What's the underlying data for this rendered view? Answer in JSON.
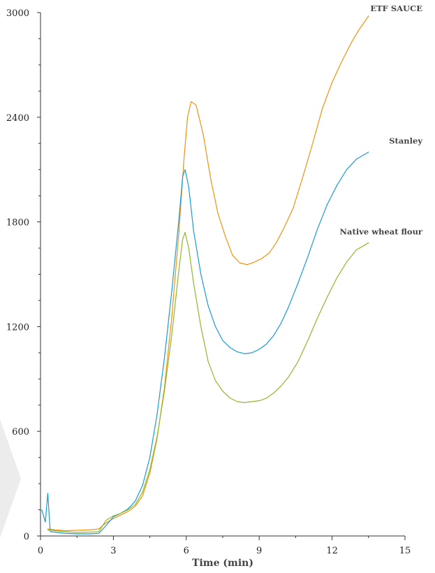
{
  "chart_data": {
    "type": "line",
    "title": "",
    "xlabel": "Time (min)",
    "ylabel": "",
    "xlim": [
      0,
      15
    ],
    "ylim": [
      0,
      3000
    ],
    "xticks": [
      0,
      3,
      6,
      9,
      12,
      15
    ],
    "yticks": [
      0,
      600,
      1200,
      1800,
      2400,
      3000
    ],
    "grid": false,
    "legend": "inline labels at line ends",
    "series": [
      {
        "name": "ETF SAUCE",
        "color": "#f0920e",
        "points": [
          [
            0.3,
            40
          ],
          [
            0.6,
            35
          ],
          [
            1.0,
            30
          ],
          [
            1.5,
            32
          ],
          [
            2.0,
            35
          ],
          [
            2.4,
            40
          ],
          [
            2.7,
            75
          ],
          [
            3.0,
            100
          ],
          [
            3.3,
            120
          ],
          [
            3.6,
            140
          ],
          [
            3.9,
            170
          ],
          [
            4.2,
            230
          ],
          [
            4.5,
            360
          ],
          [
            4.8,
            560
          ],
          [
            5.1,
            850
          ],
          [
            5.4,
            1250
          ],
          [
            5.7,
            1750
          ],
          [
            5.9,
            2150
          ],
          [
            6.05,
            2400
          ],
          [
            6.2,
            2490
          ],
          [
            6.4,
            2470
          ],
          [
            6.7,
            2300
          ],
          [
            7.0,
            2050
          ],
          [
            7.3,
            1850
          ],
          [
            7.6,
            1720
          ],
          [
            7.9,
            1610
          ],
          [
            8.2,
            1565
          ],
          [
            8.5,
            1555
          ],
          [
            8.8,
            1570
          ],
          [
            9.1,
            1590
          ],
          [
            9.4,
            1620
          ],
          [
            9.7,
            1680
          ],
          [
            10.0,
            1760
          ],
          [
            10.4,
            1880
          ],
          [
            10.8,
            2060
          ],
          [
            11.2,
            2250
          ],
          [
            11.6,
            2450
          ],
          [
            12.0,
            2600
          ],
          [
            12.4,
            2720
          ],
          [
            12.8,
            2830
          ],
          [
            13.1,
            2900
          ],
          [
            13.5,
            2980
          ]
        ]
      },
      {
        "name": "Stanley",
        "color": "#1a9cd4",
        "points": [
          [
            0.05,
            150
          ],
          [
            0.2,
            80
          ],
          [
            0.3,
            245
          ],
          [
            0.4,
            25
          ],
          [
            0.7,
            20
          ],
          [
            1.0,
            15
          ],
          [
            1.5,
            12
          ],
          [
            2.0,
            12
          ],
          [
            2.4,
            15
          ],
          [
            2.7,
            60
          ],
          [
            3.0,
            110
          ],
          [
            3.3,
            130
          ],
          [
            3.6,
            155
          ],
          [
            3.9,
            200
          ],
          [
            4.2,
            290
          ],
          [
            4.5,
            450
          ],
          [
            4.8,
            700
          ],
          [
            5.1,
            1020
          ],
          [
            5.4,
            1400
          ],
          [
            5.7,
            1820
          ],
          [
            5.85,
            2060
          ],
          [
            5.95,
            2100
          ],
          [
            6.1,
            2000
          ],
          [
            6.3,
            1750
          ],
          [
            6.6,
            1500
          ],
          [
            6.9,
            1320
          ],
          [
            7.2,
            1200
          ],
          [
            7.5,
            1120
          ],
          [
            7.8,
            1080
          ],
          [
            8.1,
            1055
          ],
          [
            8.4,
            1045
          ],
          [
            8.7,
            1050
          ],
          [
            9.0,
            1070
          ],
          [
            9.3,
            1100
          ],
          [
            9.6,
            1150
          ],
          [
            9.9,
            1220
          ],
          [
            10.2,
            1310
          ],
          [
            10.6,
            1450
          ],
          [
            11.0,
            1600
          ],
          [
            11.4,
            1760
          ],
          [
            11.8,
            1900
          ],
          [
            12.2,
            2010
          ],
          [
            12.6,
            2100
          ],
          [
            13.0,
            2160
          ],
          [
            13.5,
            2200
          ]
        ]
      },
      {
        "name": "Native wheat flour",
        "color": "#90b82a",
        "points": [
          [
            0.3,
            35
          ],
          [
            0.6,
            30
          ],
          [
            1.0,
            25
          ],
          [
            1.5,
            20
          ],
          [
            2.0,
            22
          ],
          [
            2.4,
            25
          ],
          [
            2.7,
            90
          ],
          [
            3.0,
            115
          ],
          [
            3.3,
            130
          ],
          [
            3.6,
            150
          ],
          [
            3.9,
            180
          ],
          [
            4.2,
            250
          ],
          [
            4.5,
            380
          ],
          [
            4.8,
            570
          ],
          [
            5.1,
            830
          ],
          [
            5.4,
            1150
          ],
          [
            5.7,
            1530
          ],
          [
            5.85,
            1700
          ],
          [
            5.95,
            1740
          ],
          [
            6.1,
            1650
          ],
          [
            6.3,
            1450
          ],
          [
            6.6,
            1200
          ],
          [
            6.9,
            1000
          ],
          [
            7.2,
            890
          ],
          [
            7.5,
            830
          ],
          [
            7.8,
            790
          ],
          [
            8.1,
            770
          ],
          [
            8.4,
            765
          ],
          [
            8.7,
            770
          ],
          [
            9.0,
            775
          ],
          [
            9.3,
            790
          ],
          [
            9.6,
            820
          ],
          [
            9.9,
            860
          ],
          [
            10.2,
            910
          ],
          [
            10.6,
            1000
          ],
          [
            11.0,
            1120
          ],
          [
            11.4,
            1250
          ],
          [
            11.8,
            1370
          ],
          [
            12.2,
            1480
          ],
          [
            12.6,
            1570
          ],
          [
            13.0,
            1640
          ],
          [
            13.5,
            1680
          ]
        ]
      }
    ]
  }
}
